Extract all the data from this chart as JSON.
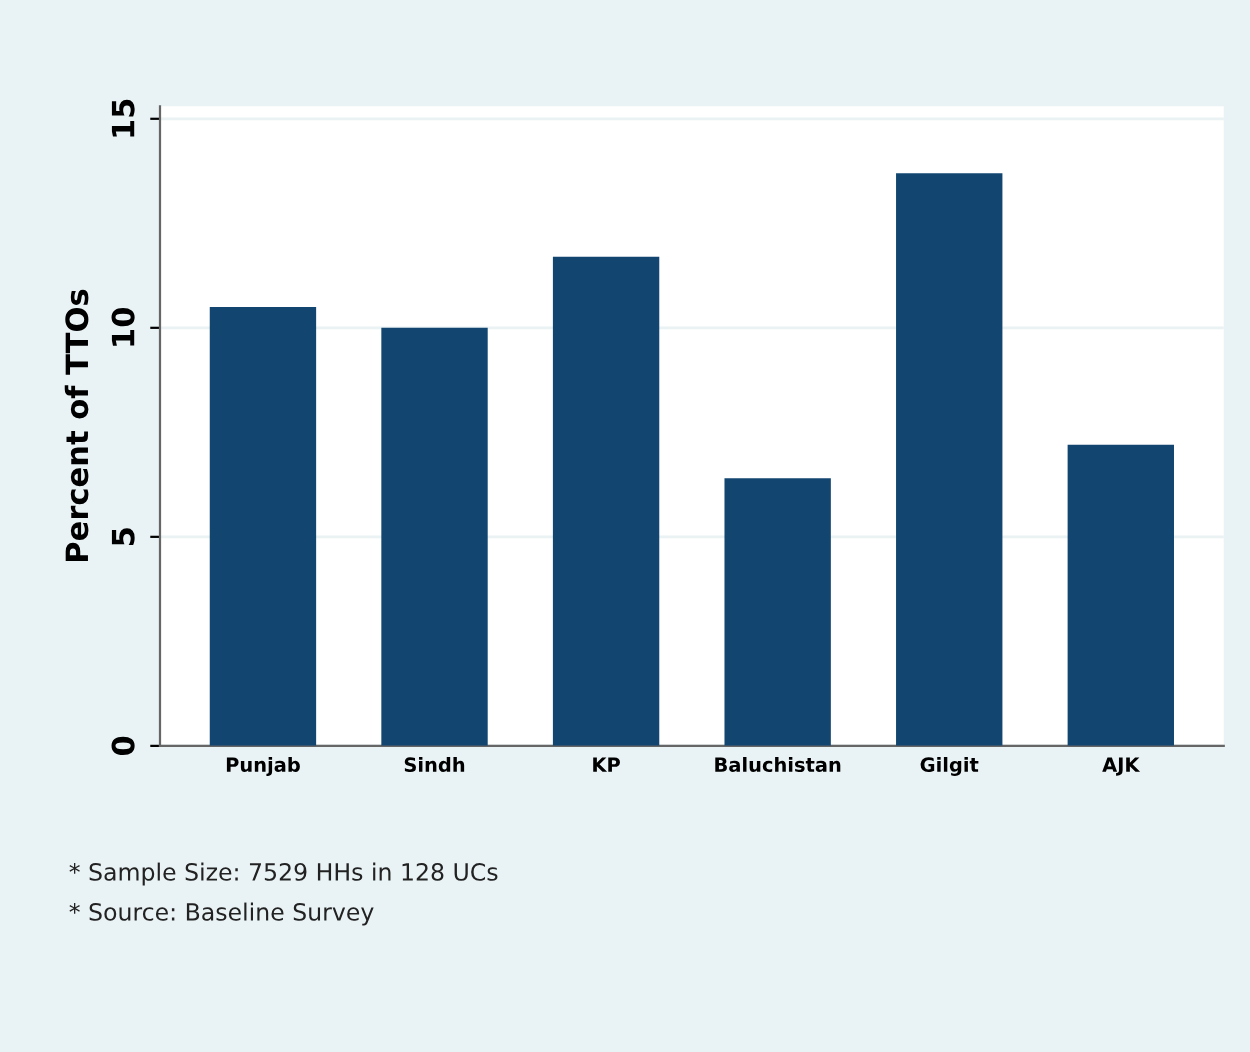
{
  "chart_data": {
    "type": "bar",
    "ylabel": "Percent of TTOs",
    "categories": [
      "Punjab",
      "Sindh",
      "KP",
      "Baluchistan",
      "Gilgit",
      "AJK"
    ],
    "values": [
      10.5,
      10.0,
      11.7,
      6.4,
      13.7,
      7.2
    ],
    "color": "#124670",
    "ylim": [
      0,
      15.3
    ],
    "yticks": [
      0,
      5,
      10,
      15
    ],
    "grid": "y",
    "annotations": [
      "* Sample Size: 7529 HHs in 128 UCs",
      "* Source: Baseline Survey"
    ]
  }
}
